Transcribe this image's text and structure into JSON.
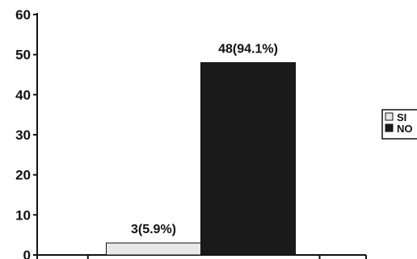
{
  "chart_data": {
    "type": "bar",
    "categories": [
      "SI",
      "NO"
    ],
    "values": [
      3,
      48
    ],
    "data_labels": [
      "3(5.9%)",
      "48(94.1%)"
    ],
    "ylim": [
      0,
      60
    ],
    "yticks": [
      "0",
      "10",
      "20",
      "30",
      "40",
      "50",
      "60"
    ],
    "legend": {
      "placement": "right",
      "entries": [
        {
          "label": "SI",
          "color": "#e8e8e8"
        },
        {
          "label": "NO",
          "color": "#1a1a1a"
        }
      ]
    },
    "grid": false,
    "colors": {
      "si": "#e8e8e8",
      "no": "#1a1a1a",
      "axis": "#111111"
    }
  }
}
